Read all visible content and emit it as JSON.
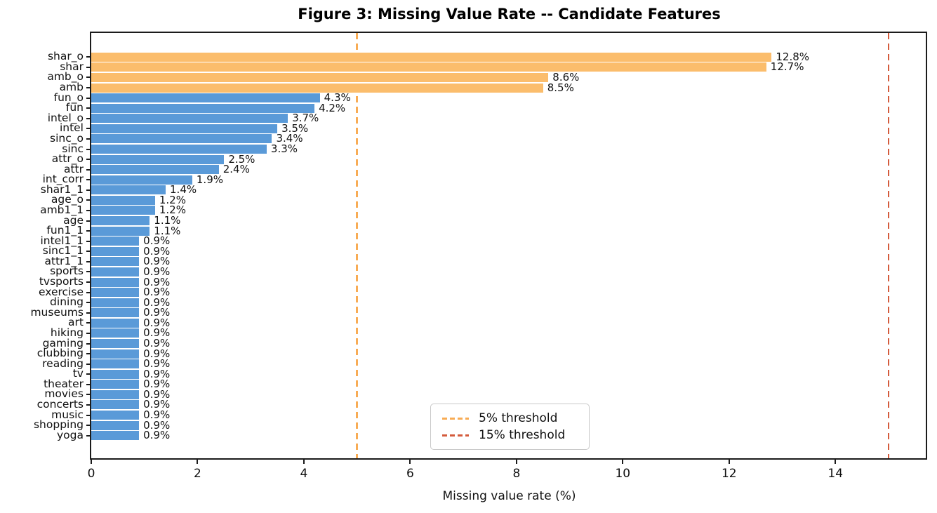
{
  "chart_data": {
    "type": "bar",
    "orientation": "horizontal",
    "title": "Figure 3: Missing Value Rate -- Candidate Features",
    "xlabel": "Missing value rate (%)",
    "ylabel": "",
    "xlim": [
      0,
      15.7
    ],
    "x_ticks": [
      0,
      2,
      4,
      6,
      8,
      10,
      12,
      14
    ],
    "grid": false,
    "categories": [
      "shar_o",
      "shar",
      "amb_o",
      "amb",
      "fun_o",
      "fun",
      "intel_o",
      "intel",
      "sinc_o",
      "sinc",
      "attr_o",
      "attr",
      "int_corr",
      "shar1_1",
      "age_o",
      "amb1_1",
      "age",
      "fun1_1",
      "intel1_1",
      "sinc1_1",
      "attr1_1",
      "sports",
      "tvsports",
      "exercise",
      "dining",
      "museums",
      "art",
      "hiking",
      "gaming",
      "clubbing",
      "reading",
      "tv",
      "theater",
      "movies",
      "concerts",
      "music",
      "shopping",
      "yoga"
    ],
    "values": [
      12.8,
      12.7,
      8.6,
      8.5,
      4.3,
      4.2,
      3.7,
      3.5,
      3.4,
      3.3,
      2.5,
      2.4,
      1.9,
      1.4,
      1.2,
      1.2,
      1.1,
      1.1,
      0.9,
      0.9,
      0.9,
      0.9,
      0.9,
      0.9,
      0.9,
      0.9,
      0.9,
      0.9,
      0.9,
      0.9,
      0.9,
      0.9,
      0.9,
      0.9,
      0.9,
      0.9,
      0.9,
      0.9
    ],
    "value_label_format": "{value}%",
    "colors": {
      "bar_above_threshold": "#FBBD6C",
      "bar_normal": "#5A9AD8",
      "axis_and_text": "#111111"
    },
    "highlight_rule": {
      "threshold": 5
    },
    "thresholds": [
      {
        "value": 5,
        "label": "5% threshold",
        "color": "#F8AC55"
      },
      {
        "value": 15,
        "label": "15% threshold",
        "color": "#D45B3C"
      }
    ],
    "legend": {
      "position": "lower center",
      "border_color": "#c9c9c9"
    }
  }
}
